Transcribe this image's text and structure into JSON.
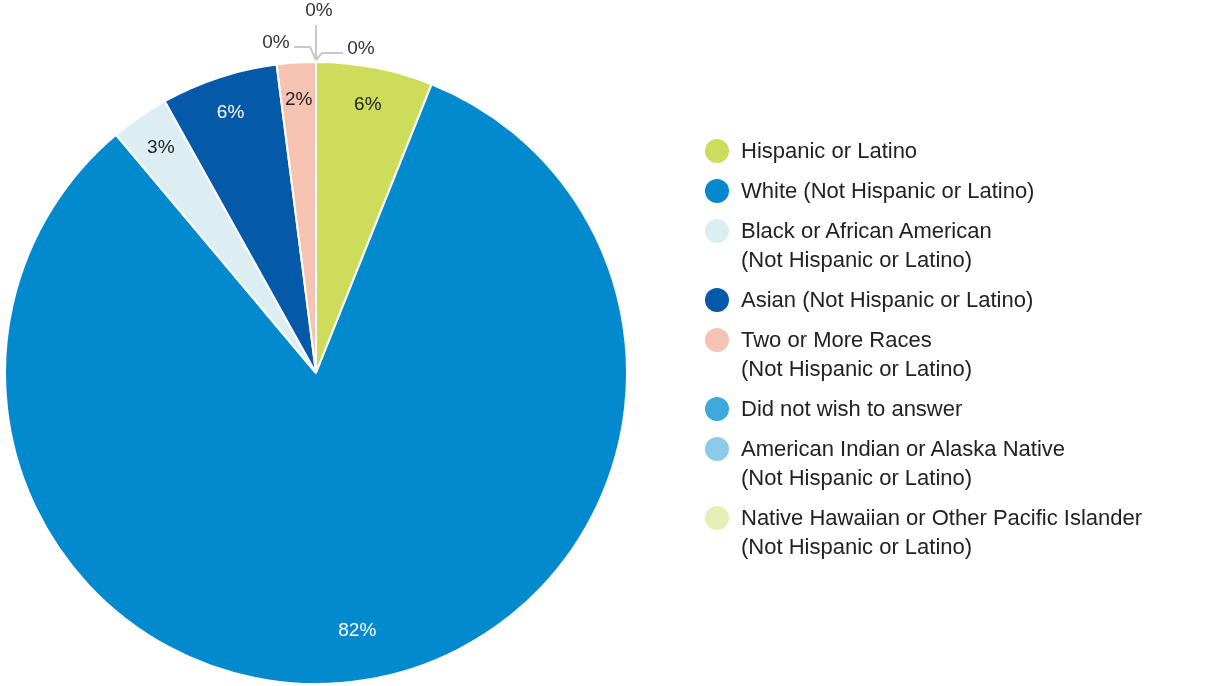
{
  "chart_data": {
    "type": "pie",
    "categories": [
      "Hispanic or Latino",
      "White (Not Hispanic or Latino)",
      "Black or African American\n(Not Hispanic or Latino)",
      "Asian (Not Hispanic or Latino)",
      "Two or More Races\n(Not Hispanic or Latino)",
      "Did not wish to answer",
      "American Indian or Alaska Native\n(Not Hispanic or Latino)",
      "Native Hawaiian or Other Pacific Islander\n(Not Hispanic or Latino)"
    ],
    "values": [
      6,
      82,
      3,
      6,
      2,
      0,
      0,
      0
    ],
    "value_labels": [
      "6%",
      "82%",
      "3%",
      "6%",
      "2%",
      "0%",
      "0%",
      "0%"
    ],
    "colors": [
      "#cddc5a",
      "#0389cd",
      "#dceef2",
      "#0459a8",
      "#f6c3b3",
      "#3eaadc",
      "#8ccbe8",
      "#e5efb5"
    ],
    "legend": "right"
  }
}
